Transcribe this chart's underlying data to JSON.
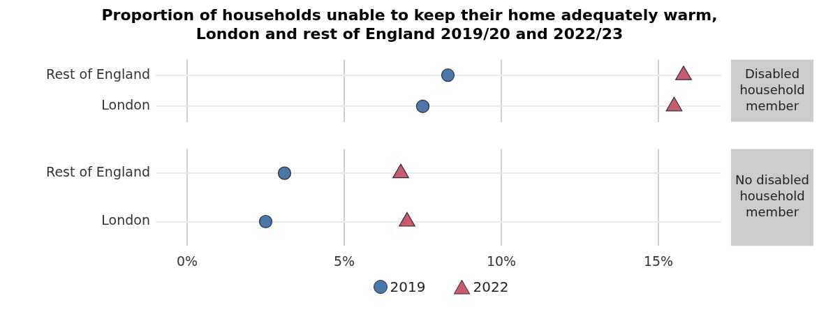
{
  "chart_data": [
    {
      "type": "scatter",
      "title": "Proportion of households unable to keep their home adequately warm,\nLondon and rest of England 2019/20 and 2022/23",
      "categories": [
        "Rest of England",
        "London"
      ],
      "annotations": [
        "Disabled household member"
      ],
      "xlim": [
        -1,
        17
      ],
      "xticks": [
        {
          "value": 0,
          "label": null
        },
        {
          "value": 5,
          "label": null
        },
        {
          "value": 10,
          "label": null
        },
        {
          "value": 15,
          "label": null
        }
      ],
      "grid": true,
      "legend": false,
      "tick_labels": "y",
      "orientation": "horizontal",
      "series": [
        {
          "color": "#4a76a8",
          "marker": "circle",
          "values": [
            8.3,
            7.5
          ]
        },
        {
          "color": "#c95b6e",
          "marker": "triangle",
          "values": [
            15.8,
            15.5
          ]
        }
      ]
    },
    {
      "type": "scatter",
      "categories": [
        "Rest of England",
        "London"
      ],
      "annotations": [
        "No disabled household member"
      ],
      "xlim": [
        -1,
        17
      ],
      "xticks": [
        {
          "value": 0,
          "label": "0%"
        },
        {
          "value": 5,
          "label": "5%"
        },
        {
          "value": 10,
          "label": "10%"
        },
        {
          "value": 15,
          "label": "15%"
        }
      ],
      "grid": true,
      "legend": "bottom",
      "orientation": "horizontal",
      "series": [
        {
          "name": "2019",
          "color": "#4a76a8",
          "marker": "circle",
          "values": [
            3.1,
            2.5
          ]
        },
        {
          "name": "2022",
          "color": "#c95b6e",
          "marker": "triangle",
          "values": [
            6.8,
            7.0
          ]
        }
      ]
    }
  ]
}
